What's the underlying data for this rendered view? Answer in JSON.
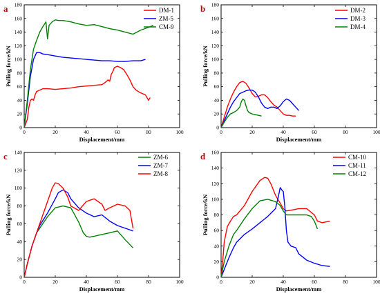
{
  "chart_data": [
    {
      "type": "line",
      "panel_label": "a",
      "xlabel": "Displacement/mm",
      "ylabel": "Pulling force/kN",
      "xlim": [
        0,
        100
      ],
      "ylim": [
        0,
        180
      ],
      "xticks": [
        0,
        20,
        40,
        60,
        80,
        100
      ],
      "yticks": [
        0,
        20,
        40,
        60,
        80,
        100,
        120,
        140,
        160,
        180
      ],
      "legend_position": "top-right",
      "series": [
        {
          "name": "DM-1",
          "color": "#ff0000",
          "x": [
            0,
            2,
            3,
            4,
            5,
            6,
            7,
            8,
            10,
            12,
            15,
            20,
            25,
            30,
            35,
            40,
            45,
            50,
            52,
            54,
            55,
            56,
            57,
            58,
            60,
            62,
            64,
            66,
            68,
            70,
            72,
            74,
            76,
            78,
            80,
            81
          ],
          "y": [
            0,
            12,
            30,
            40,
            42,
            40,
            48,
            53,
            55,
            57,
            57,
            56,
            57,
            58,
            60,
            61,
            62,
            63,
            66,
            70,
            68,
            78,
            82,
            88,
            90,
            88,
            85,
            78,
            70,
            60,
            55,
            52,
            50,
            48,
            40,
            44
          ]
        },
        {
          "name": "ZM-5",
          "color": "#0000ff",
          "x": [
            0,
            2,
            4,
            6,
            8,
            10,
            12,
            15,
            20,
            25,
            30,
            35,
            40,
            45,
            50,
            55,
            60,
            65,
            70,
            75,
            78
          ],
          "y": [
            0,
            35,
            75,
            100,
            110,
            110,
            108,
            107,
            105,
            103,
            102,
            101,
            100,
            99,
            98,
            98,
            97,
            97,
            98,
            98,
            100
          ]
        },
        {
          "name": "CM-9",
          "color": "#008000",
          "x": [
            0,
            2,
            4,
            6,
            8,
            10,
            12,
            14,
            15,
            16,
            18,
            20,
            22,
            25,
            30,
            35,
            40,
            45,
            50,
            55,
            60,
            65,
            70,
            75,
            80,
            83
          ],
          "y": [
            0,
            40,
            85,
            115,
            128,
            140,
            148,
            155,
            130,
            150,
            155,
            158,
            157,
            157,
            155,
            152,
            150,
            151,
            148,
            145,
            143,
            140,
            137,
            143,
            147,
            150
          ]
        }
      ]
    },
    {
      "type": "line",
      "panel_label": "b",
      "xlabel": "Displacement/mm",
      "ylabel": "Pulling force/kN",
      "xlim": [
        0,
        100
      ],
      "ylim": [
        0,
        180
      ],
      "xticks": [
        0,
        20,
        40,
        60,
        80,
        100
      ],
      "yticks": [
        0,
        20,
        40,
        60,
        80,
        100,
        120,
        140,
        160,
        180
      ],
      "legend_position": "top-right",
      "series": [
        {
          "name": "DM-2",
          "color": "#ff0000",
          "x": [
            0,
            2,
            4,
            6,
            8,
            10,
            12,
            14,
            16,
            18,
            20,
            22,
            24,
            26,
            28,
            30,
            32,
            34,
            36,
            38,
            40,
            42,
            44,
            46,
            48
          ],
          "y": [
            0,
            15,
            30,
            42,
            52,
            60,
            66,
            68,
            65,
            58,
            50,
            45,
            46,
            48,
            48,
            44,
            38,
            33,
            30,
            25,
            20,
            18,
            18,
            17,
            17
          ]
        },
        {
          "name": "DM-3",
          "color": "#0000ff",
          "x": [
            0,
            2,
            4,
            6,
            8,
            10,
            12,
            14,
            16,
            18,
            20,
            22,
            24,
            26,
            28,
            30,
            32,
            34,
            36,
            38,
            40,
            42,
            44,
            46,
            48,
            50
          ],
          "y": [
            0,
            10,
            20,
            30,
            38,
            44,
            50,
            52,
            54,
            55,
            55,
            52,
            45,
            36,
            30,
            28,
            30,
            30,
            28,
            32,
            38,
            42,
            40,
            35,
            30,
            25
          ]
        },
        {
          "name": "DM-4",
          "color": "#008000",
          "x": [
            0,
            2,
            4,
            6,
            8,
            10,
            12,
            13,
            14,
            15,
            16,
            17,
            18,
            20,
            22,
            24,
            26
          ],
          "y": [
            0,
            8,
            15,
            20,
            22,
            25,
            30,
            38,
            42,
            40,
            32,
            25,
            22,
            20,
            19,
            18,
            17
          ]
        }
      ]
    },
    {
      "type": "line",
      "panel_label": "c",
      "xlabel": "Displacement/mm",
      "ylabel": "Pulling force/kN",
      "xlim": [
        0,
        100
      ],
      "ylim": [
        0,
        140
      ],
      "xticks": [
        0,
        20,
        40,
        60,
        80,
        100
      ],
      "yticks": [
        0,
        20,
        40,
        60,
        80,
        100,
        120,
        140
      ],
      "legend_position": "top-right",
      "series": [
        {
          "name": "ZM-6",
          "color": "#008000",
          "x": [
            0,
            2,
            5,
            8,
            10,
            15,
            20,
            25,
            30,
            35,
            38,
            40,
            42,
            45,
            50,
            55,
            60,
            65,
            70
          ],
          "y": [
            0,
            15,
            35,
            50,
            55,
            68,
            78,
            80,
            78,
            62,
            50,
            46,
            45,
            46,
            48,
            50,
            52,
            42,
            33
          ]
        },
        {
          "name": "ZM-7",
          "color": "#0000ff",
          "x": [
            0,
            2,
            5,
            8,
            10,
            15,
            20,
            22,
            25,
            28,
            30,
            35,
            40,
            45,
            50,
            55,
            60,
            65,
            70
          ],
          "y": [
            0,
            15,
            35,
            50,
            58,
            72,
            88,
            95,
            98,
            95,
            88,
            78,
            72,
            68,
            70,
            63,
            58,
            55,
            52
          ]
        },
        {
          "name": "ZM-8",
          "color": "#ff0000",
          "x": [
            0,
            2,
            5,
            8,
            10,
            15,
            18,
            20,
            22,
            25,
            28,
            30,
            35,
            40,
            45,
            50,
            52,
            55,
            60,
            65,
            68,
            70
          ],
          "y": [
            0,
            15,
            35,
            50,
            60,
            85,
            100,
            106,
            105,
            100,
            90,
            80,
            75,
            85,
            88,
            82,
            75,
            78,
            82,
            80,
            75,
            55
          ]
        }
      ]
    },
    {
      "type": "line",
      "panel_label": "d",
      "xlabel": "Displacement/mm",
      "ylabel": "Pulling force/kN",
      "xlim": [
        0,
        100
      ],
      "ylim": [
        0,
        160
      ],
      "xticks": [
        0,
        20,
        40,
        60,
        80,
        100
      ],
      "yticks": [
        0,
        20,
        40,
        60,
        80,
        100,
        120,
        140,
        160
      ],
      "legend_position": "top-right",
      "series": [
        {
          "name": "CM-10",
          "color": "#ff0000",
          "x": [
            0,
            1,
            2,
            4,
            6,
            8,
            10,
            15,
            20,
            25,
            28,
            30,
            32,
            35,
            38,
            40,
            42,
            45,
            50,
            55,
            60,
            62,
            65,
            70
          ],
          "y": [
            0,
            20,
            45,
            65,
            72,
            78,
            80,
            92,
            110,
            124,
            128,
            127,
            120,
            105,
            95,
            88,
            85,
            86,
            88,
            88,
            80,
            72,
            70,
            72
          ]
        },
        {
          "name": "CM-11",
          "color": "#0000ff",
          "x": [
            0,
            2,
            5,
            8,
            10,
            15,
            20,
            25,
            30,
            35,
            37,
            38,
            39,
            40,
            41,
            42,
            43,
            45,
            48,
            50,
            55,
            60,
            65,
            70
          ],
          "y": [
            0,
            10,
            25,
            38,
            45,
            55,
            62,
            70,
            78,
            88,
            105,
            115,
            112,
            110,
            90,
            60,
            45,
            40,
            38,
            30,
            22,
            18,
            15,
            14
          ]
        },
        {
          "name": "CM-12",
          "color": "#008000",
          "x": [
            0,
            2,
            5,
            8,
            10,
            15,
            20,
            25,
            30,
            35,
            38,
            40,
            42,
            45,
            50,
            55,
            58,
            60,
            62
          ],
          "y": [
            0,
            20,
            40,
            55,
            60,
            75,
            88,
            98,
            100,
            97,
            92,
            85,
            80,
            80,
            80,
            80,
            78,
            72,
            62
          ]
        }
      ]
    }
  ]
}
